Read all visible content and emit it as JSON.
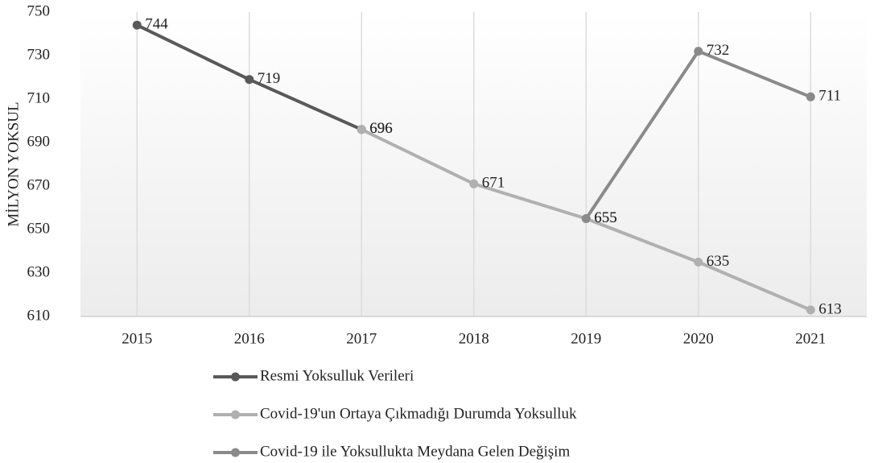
{
  "chart_data": {
    "type": "line",
    "y_label": "MİLYON YOKSUL",
    "categories": [
      "2015",
      "2016",
      "2017",
      "2018",
      "2019",
      "2020",
      "2021"
    ],
    "series": [
      {
        "name": "Resmi Yoksulluk Verileri",
        "color": "#595959",
        "values": [
          744,
          719,
          696,
          null,
          null,
          null,
          null
        ]
      },
      {
        "name": "Covid-19'un Ortaya Çıkmadığı Durumda Yoksulluk",
        "color": "#b0b0b0",
        "values": [
          null,
          null,
          696,
          671,
          655,
          635,
          613
        ]
      },
      {
        "name": "Covid-19 ile Yoksullukta Meydana Gelen Değişim",
        "color": "#8a8a8a",
        "values": [
          null,
          null,
          null,
          null,
          655,
          732,
          711
        ]
      }
    ],
    "ylim": [
      610,
      750
    ],
    "yticks": [
      610,
      630,
      650,
      670,
      690,
      710,
      730,
      750
    ],
    "grid": true,
    "legend": "bottom"
  }
}
